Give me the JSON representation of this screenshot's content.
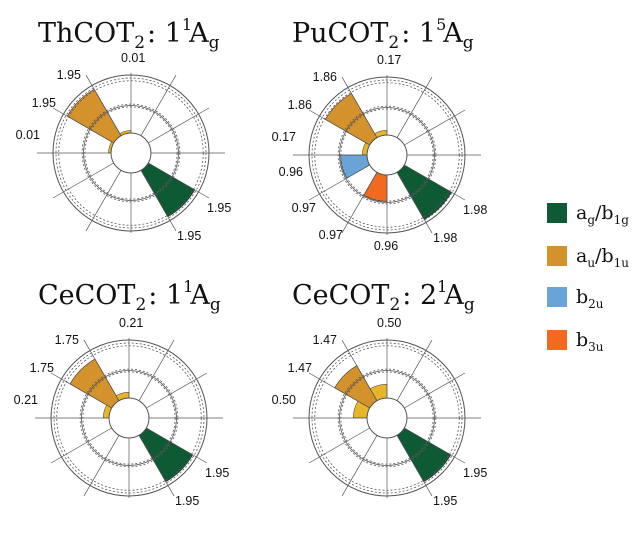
{
  "chart_data": [
    {
      "type": "polar-bar",
      "title": {
        "main": "ThCOT",
        "sub": "2",
        "sep": ":",
        "num": "1",
        "sup": "1",
        "sym": "A",
        "symsub": "g"
      },
      "labels": {
        "a_in": "1.95",
        "a_out": "1.95",
        "au_in": "1.95",
        "au_out": "1.95",
        "au_tiny_top": "0.01",
        "au_tiny_left": "0.01"
      },
      "values": {
        "ag_b1g": 1.95,
        "au_b1u": 1.95,
        "b2u": 0.0,
        "b3u": 0.0,
        "tiny": 0.01
      }
    },
    {
      "type": "polar-bar",
      "title": {
        "main": "PuCOT",
        "sub": "2",
        "sep": ":",
        "num": "1",
        "sup": "5",
        "sym": "A",
        "symsub": "g"
      },
      "labels": {
        "a_in": "1.98",
        "a_out": "1.98",
        "au_in": "1.86",
        "au_out": "1.86",
        "au_tiny_top": "0.17",
        "au_tiny_left": "0.17",
        "b2u_a": "0.96",
        "b2u_b": "0.97",
        "b3u_a": "0.97",
        "b3u_b": "0.96"
      },
      "values": {
        "ag_b1g": 1.98,
        "au_b1u": 1.86,
        "b2u": 0.965,
        "b3u": 0.965,
        "tiny": 0.17
      }
    },
    {
      "type": "polar-bar",
      "title": {
        "main": "CeCOT",
        "sub": "2",
        "sep": ":",
        "num": "1",
        "sup": "1",
        "sym": "A",
        "symsub": "g"
      },
      "labels": {
        "a_in": "1.95",
        "a_out": "1.95",
        "au_in": "1.75",
        "au_out": "1.75",
        "au_tiny_top": "0.21",
        "au_tiny_left": "0.21"
      },
      "values": {
        "ag_b1g": 1.95,
        "au_b1u": 1.75,
        "b2u": 0.0,
        "b3u": 0.0,
        "tiny": 0.21
      }
    },
    {
      "type": "polar-bar",
      "title": {
        "main": "CeCOT",
        "sub": "2",
        "sep": ":",
        "num": "2",
        "sup": "1",
        "sym": "A",
        "symsub": "g"
      },
      "labels": {
        "a_in": "1.95",
        "a_out": "1.95",
        "au_in": "1.47",
        "au_out": "1.47",
        "au_tiny_top": "0.50",
        "au_tiny_left": "0.50"
      },
      "values": {
        "ag_b1g": 1.95,
        "au_b1u": 1.47,
        "b2u": 0.0,
        "b3u": 0.0,
        "tiny": 0.5
      }
    }
  ],
  "legend": [
    {
      "key": "ag_b1g",
      "color": "#0e5a34",
      "a": "a",
      "asub": "g",
      "slash": "/",
      "b": "b",
      "bsub": "1g"
    },
    {
      "key": "au_b1u",
      "color": "#d3922b",
      "a": "a",
      "asub": "u",
      "slash": "/",
      "b": "b",
      "bsub": "1u"
    },
    {
      "key": "b2u",
      "color": "#6aa3d8",
      "a": "b",
      "asub": "2u"
    },
    {
      "key": "b3u",
      "color": "#f26a1f",
      "a": "b",
      "asub": "3u"
    }
  ],
  "colors": {
    "ag_b1g": "#0e5a34",
    "au_b1u": "#d3922b",
    "au_tiny": "#e6b52a",
    "b2u": "#6aa3d8",
    "b3u": "#f26a1f",
    "grid": "#555555"
  }
}
